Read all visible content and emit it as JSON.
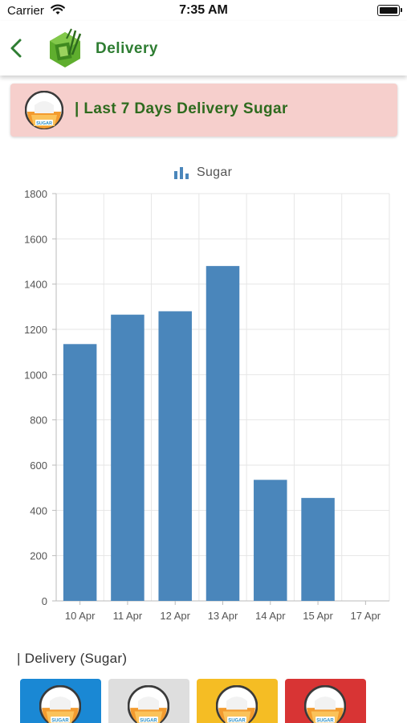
{
  "status_bar": {
    "carrier": "Carrier",
    "time": "7:35 AM"
  },
  "nav": {
    "title": "Delivery"
  },
  "banner": {
    "text": "| Last 7 Days Delivery Sugar"
  },
  "icon_label": "SUGAR",
  "chart_data": {
    "type": "bar",
    "categories": [
      "10 Apr",
      "11 Apr",
      "12 Apr",
      "13 Apr",
      "14 Apr",
      "15 Apr",
      "17 Apr"
    ],
    "series": [
      {
        "name": "Sugar",
        "values": [
          1135,
          1265,
          1280,
          1480,
          535,
          455,
          0
        ]
      }
    ],
    "ylim": [
      0,
      1800
    ],
    "yticks": [
      0,
      200,
      400,
      600,
      800,
      1000,
      1200,
      1400,
      1600,
      1800
    ],
    "grid": true,
    "legend": "top-center",
    "bar_color": "#4a86bb"
  },
  "section": {
    "title": "| Delivery (Sugar)"
  },
  "cards": [
    {
      "color": "#1a88d4"
    },
    {
      "color": "#dedede"
    },
    {
      "color": "#f5bd24"
    },
    {
      "color": "#d83434"
    }
  ],
  "colors": {
    "accent_green": "#2e7d32",
    "banner_bg": "#f6cfcc"
  }
}
